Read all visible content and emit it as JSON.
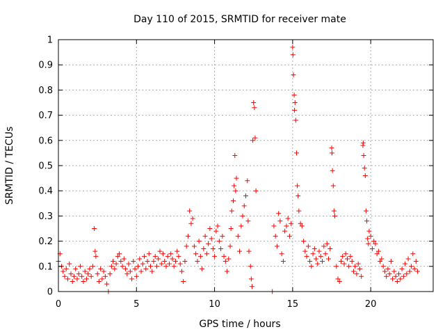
{
  "chart_data": {
    "type": "scatter",
    "title": "Day 110 of 2015, SRMTID for receiver mate",
    "xlabel": "GPS time / hours",
    "ylabel": "SRMTID / TECUs",
    "xlim": [
      0,
      24
    ],
    "ylim": [
      0,
      1
    ],
    "xticks": [
      {
        "value": 0,
        "label": "0"
      },
      {
        "value": 5,
        "label": "5"
      },
      {
        "value": 10,
        "label": "10"
      },
      {
        "value": 15,
        "label": "15"
      },
      {
        "value": 20,
        "label": "20"
      }
    ],
    "yticks": [
      {
        "value": 0,
        "label": "0"
      },
      {
        "value": 0.1,
        "label": "0.1"
      },
      {
        "value": 0.2,
        "label": "0.2"
      },
      {
        "value": 0.3,
        "label": "0.3"
      },
      {
        "value": 0.4,
        "label": "0.4"
      },
      {
        "value": 0.5,
        "label": "0.5"
      },
      {
        "value": 0.6,
        "label": "0.6"
      },
      {
        "value": 0.7,
        "label": "0.7"
      },
      {
        "value": 0.8,
        "label": "0.8"
      },
      {
        "value": 0.9,
        "label": "0.9"
      },
      {
        "value": 1,
        "label": "1"
      }
    ],
    "grid": true,
    "marker": "plus",
    "color": "#ff0000",
    "series": [
      {
        "name": "SRMTID",
        "points": [
          [
            0.0,
            0.12
          ],
          [
            0.1,
            0.15
          ],
          [
            0.2,
            0.1
          ],
          [
            0.3,
            0.08
          ],
          [
            0.4,
            0.06
          ],
          [
            0.5,
            0.09
          ],
          [
            0.6,
            0.05
          ],
          [
            0.7,
            0.11
          ],
          [
            0.8,
            0.07
          ],
          [
            0.9,
            0.04
          ],
          [
            1.0,
            0.06
          ],
          [
            1.1,
            0.09
          ],
          [
            1.2,
            0.05
          ],
          [
            1.3,
            0.07
          ],
          [
            1.4,
            0.1
          ],
          [
            1.5,
            0.06
          ],
          [
            1.6,
            0.04
          ],
          [
            1.7,
            0.08
          ],
          [
            1.8,
            0.05
          ],
          [
            1.9,
            0.07
          ],
          [
            2.0,
            0.09
          ],
          [
            2.1,
            0.06
          ],
          [
            2.2,
            0.1
          ],
          [
            2.3,
            0.25
          ],
          [
            2.35,
            0.16
          ],
          [
            2.4,
            0.14
          ],
          [
            2.5,
            0.07
          ],
          [
            2.6,
            0.04
          ],
          [
            2.7,
            0.09
          ],
          [
            2.8,
            0.05
          ],
          [
            2.9,
            0.08
          ],
          [
            3.0,
            0.06
          ],
          [
            3.1,
            0.03
          ],
          [
            3.2,
            0.0
          ],
          [
            3.3,
            0.07
          ],
          [
            3.4,
            0.1
          ],
          [
            3.5,
            0.12
          ],
          [
            3.6,
            0.09
          ],
          [
            3.7,
            0.11
          ],
          [
            3.8,
            0.14
          ],
          [
            3.9,
            0.15
          ],
          [
            4.0,
            0.12
          ],
          [
            4.1,
            0.1
          ],
          [
            4.2,
            0.13
          ],
          [
            4.3,
            0.09
          ],
          [
            4.4,
            0.07
          ],
          [
            4.5,
            0.11
          ],
          [
            4.6,
            0.08
          ],
          [
            4.7,
            0.05
          ],
          [
            4.8,
            0.12
          ],
          [
            4.9,
            0.09
          ],
          [
            5.0,
            0.06
          ],
          [
            5.1,
            0.1
          ],
          [
            5.2,
            0.13
          ],
          [
            5.3,
            0.08
          ],
          [
            5.4,
            0.11
          ],
          [
            5.5,
            0.14
          ],
          [
            5.6,
            0.09
          ],
          [
            5.7,
            0.12
          ],
          [
            5.8,
            0.15
          ],
          [
            5.9,
            0.1
          ],
          [
            6.0,
            0.08
          ],
          [
            6.1,
            0.12
          ],
          [
            6.2,
            0.14
          ],
          [
            6.3,
            0.1
          ],
          [
            6.4,
            0.13
          ],
          [
            6.5,
            0.16
          ],
          [
            6.6,
            0.11
          ],
          [
            6.7,
            0.15
          ],
          [
            6.8,
            0.12
          ],
          [
            6.9,
            0.1
          ],
          [
            7.0,
            0.14
          ],
          [
            7.1,
            0.11
          ],
          [
            7.2,
            0.15
          ],
          [
            7.3,
            0.13
          ],
          [
            7.4,
            0.1
          ],
          [
            7.5,
            0.12
          ],
          [
            7.6,
            0.16
          ],
          [
            7.7,
            0.14
          ],
          [
            7.8,
            0.11
          ],
          [
            7.9,
            0.08
          ],
          [
            8.0,
            0.04
          ],
          [
            8.1,
            0.12
          ],
          [
            8.2,
            0.18
          ],
          [
            8.3,
            0.22
          ],
          [
            8.4,
            0.32
          ],
          [
            8.5,
            0.27
          ],
          [
            8.6,
            0.29
          ],
          [
            8.7,
            0.18
          ],
          [
            8.8,
            0.15
          ],
          [
            8.9,
            0.12
          ],
          [
            9.0,
            0.2
          ],
          [
            9.1,
            0.14
          ],
          [
            9.2,
            0.09
          ],
          [
            9.3,
            0.17
          ],
          [
            9.4,
            0.22
          ],
          [
            9.5,
            0.15
          ],
          [
            9.6,
            0.19
          ],
          [
            9.7,
            0.25
          ],
          [
            9.8,
            0.21
          ],
          [
            9.9,
            0.17
          ],
          [
            10.0,
            0.14
          ],
          [
            10.1,
            0.24
          ],
          [
            10.2,
            0.26
          ],
          [
            10.3,
            0.2
          ],
          [
            10.4,
            0.17
          ],
          [
            10.5,
            0.22
          ],
          [
            10.6,
            0.14
          ],
          [
            10.7,
            0.12
          ],
          [
            10.8,
            0.08
          ],
          [
            10.9,
            0.13
          ],
          [
            11.0,
            0.18
          ],
          [
            11.05,
            0.25
          ],
          [
            11.1,
            0.32
          ],
          [
            11.2,
            0.36
          ],
          [
            11.25,
            0.42
          ],
          [
            11.3,
            0.54
          ],
          [
            11.35,
            0.4
          ],
          [
            11.4,
            0.45
          ],
          [
            11.5,
            0.22
          ],
          [
            11.6,
            0.16
          ],
          [
            11.7,
            0.26
          ],
          [
            11.8,
            0.3
          ],
          [
            11.9,
            0.34
          ],
          [
            12.0,
            0.38
          ],
          [
            12.1,
            0.44
          ],
          [
            12.15,
            0.28
          ],
          [
            12.2,
            0.16
          ],
          [
            12.3,
            0.1
          ],
          [
            12.35,
            0.05
          ],
          [
            12.4,
            0.02
          ],
          [
            12.45,
            0.6
          ],
          [
            12.5,
            0.75
          ],
          [
            12.55,
            0.73
          ],
          [
            12.6,
            0.61
          ],
          [
            12.65,
            0.4
          ],
          [
            13.7,
            0.0
          ],
          [
            13.8,
            0.26
          ],
          [
            13.9,
            0.22
          ],
          [
            14.0,
            0.18
          ],
          [
            14.1,
            0.31
          ],
          [
            14.2,
            0.28
          ],
          [
            14.3,
            0.15
          ],
          [
            14.4,
            0.12
          ],
          [
            14.5,
            0.24
          ],
          [
            14.6,
            0.26
          ],
          [
            14.7,
            0.29
          ],
          [
            14.8,
            0.22
          ],
          [
            14.9,
            0.27
          ],
          [
            15.0,
            0.97
          ],
          [
            15.02,
            0.94
          ],
          [
            15.05,
            0.86
          ],
          [
            15.1,
            0.78
          ],
          [
            15.12,
            0.72
          ],
          [
            15.15,
            0.75
          ],
          [
            15.2,
            0.68
          ],
          [
            15.25,
            0.55
          ],
          [
            15.3,
            0.42
          ],
          [
            15.35,
            0.38
          ],
          [
            15.4,
            0.32
          ],
          [
            15.5,
            0.27
          ],
          [
            15.6,
            0.26
          ],
          [
            15.7,
            0.2
          ],
          [
            15.8,
            0.16
          ],
          [
            15.9,
            0.14
          ],
          [
            16.0,
            0.18
          ],
          [
            16.1,
            0.12
          ],
          [
            16.2,
            0.1
          ],
          [
            16.3,
            0.15
          ],
          [
            16.4,
            0.17
          ],
          [
            16.5,
            0.13
          ],
          [
            16.6,
            0.11
          ],
          [
            16.7,
            0.16
          ],
          [
            16.8,
            0.14
          ],
          [
            16.9,
            0.12
          ],
          [
            17.0,
            0.18
          ],
          [
            17.1,
            0.15
          ],
          [
            17.2,
            0.19
          ],
          [
            17.3,
            0.13
          ],
          [
            17.4,
            0.17
          ],
          [
            17.5,
            0.57
          ],
          [
            17.52,
            0.55
          ],
          [
            17.55,
            0.48
          ],
          [
            17.6,
            0.42
          ],
          [
            17.65,
            0.32
          ],
          [
            17.7,
            0.3
          ],
          [
            17.8,
            0.1
          ],
          [
            17.9,
            0.05
          ],
          [
            18.0,
            0.04
          ],
          [
            18.1,
            0.12
          ],
          [
            18.2,
            0.14
          ],
          [
            18.3,
            0.11
          ],
          [
            18.4,
            0.15
          ],
          [
            18.5,
            0.13
          ],
          [
            18.6,
            0.1
          ],
          [
            18.7,
            0.14
          ],
          [
            18.8,
            0.12
          ],
          [
            18.9,
            0.08
          ],
          [
            19.0,
            0.1
          ],
          [
            19.1,
            0.07
          ],
          [
            19.2,
            0.11
          ],
          [
            19.3,
            0.09
          ],
          [
            19.4,
            0.06
          ],
          [
            19.5,
            0.58
          ],
          [
            19.52,
            0.59
          ],
          [
            19.55,
            0.54
          ],
          [
            19.6,
            0.49
          ],
          [
            19.65,
            0.46
          ],
          [
            19.7,
            0.32
          ],
          [
            19.75,
            0.28
          ],
          [
            19.8,
            0.21
          ],
          [
            19.85,
            0.19
          ],
          [
            19.9,
            0.24
          ],
          [
            20.0,
            0.22
          ],
          [
            20.1,
            0.17
          ],
          [
            20.2,
            0.2
          ],
          [
            20.3,
            0.19
          ],
          [
            20.4,
            0.15
          ],
          [
            20.5,
            0.16
          ],
          [
            20.6,
            0.12
          ],
          [
            20.7,
            0.13
          ],
          [
            20.8,
            0.1
          ],
          [
            20.9,
            0.08
          ],
          [
            21.0,
            0.06
          ],
          [
            21.1,
            0.09
          ],
          [
            21.2,
            0.07
          ],
          [
            21.3,
            0.12
          ],
          [
            21.4,
            0.05
          ],
          [
            21.5,
            0.08
          ],
          [
            21.6,
            0.06
          ],
          [
            21.7,
            0.04
          ],
          [
            21.8,
            0.07
          ],
          [
            21.9,
            0.05
          ],
          [
            22.0,
            0.09
          ],
          [
            22.1,
            0.06
          ],
          [
            22.2,
            0.11
          ],
          [
            22.3,
            0.07
          ],
          [
            22.4,
            0.13
          ],
          [
            22.5,
            0.08
          ],
          [
            22.6,
            0.1
          ],
          [
            22.7,
            0.15
          ],
          [
            22.8,
            0.09
          ],
          [
            22.9,
            0.12
          ],
          [
            23.0,
            0.08
          ]
        ]
      }
    ]
  }
}
